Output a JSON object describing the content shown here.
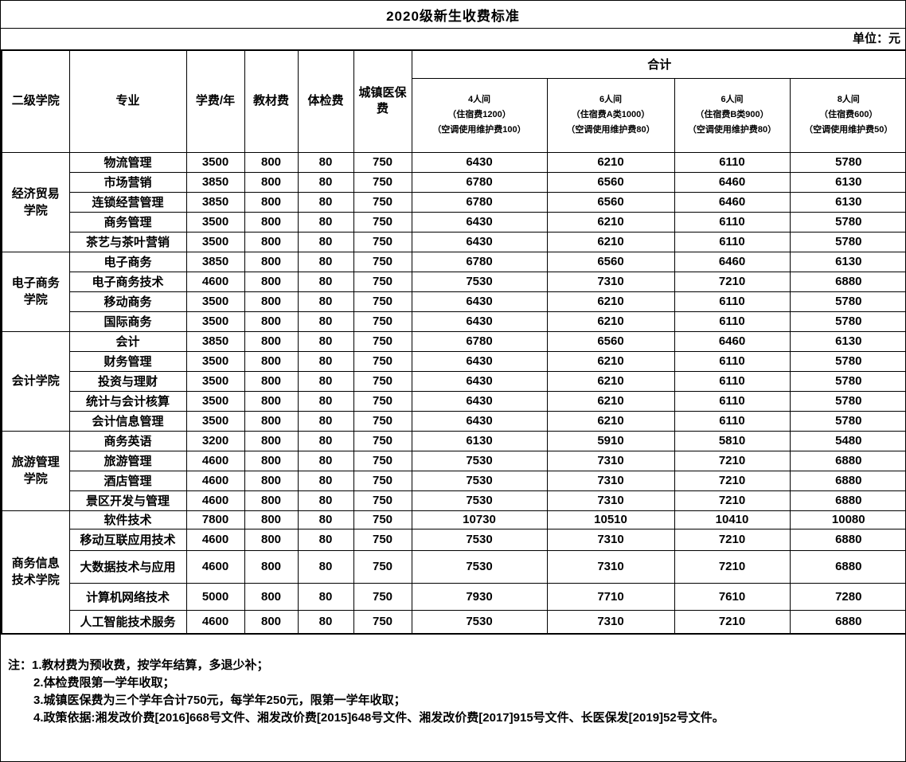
{
  "page": {
    "title": "2020级新生收费标准",
    "unit_label": "单位：元"
  },
  "colors": {
    "text": "#000000",
    "background": "#ffffff",
    "border": "#000000"
  },
  "table": {
    "headers": {
      "college": "二级学院",
      "major": "专业",
      "tuition": "学费/年",
      "textbook": "教材费",
      "physical": "体检费",
      "insurance": "城镇医保\n费",
      "total_group": "合计",
      "room_types": [
        "4人间\n（住宿费1200）\n（空调使用维护费100）",
        "6人间\n（住宿费A类1000）\n（空调使用维护费80）",
        "6人间\n（住宿费B类900）\n（空调使用维护费80）",
        "8人间\n（住宿费600）\n（空调使用维护费50）"
      ]
    },
    "colleges": [
      {
        "name": "经济贸易\n学院",
        "majors": [
          {
            "major": "物流管理",
            "tuition": "3500",
            "textbook": "800",
            "physical": "80",
            "insurance": "750",
            "totals": [
              "6430",
              "6210",
              "6110",
              "5780"
            ]
          },
          {
            "major": "市场营销",
            "tuition": "3850",
            "textbook": "800",
            "physical": "80",
            "insurance": "750",
            "totals": [
              "6780",
              "6560",
              "6460",
              "6130"
            ]
          },
          {
            "major": "连锁经营管理",
            "tuition": "3850",
            "textbook": "800",
            "physical": "80",
            "insurance": "750",
            "totals": [
              "6780",
              "6560",
              "6460",
              "6130"
            ]
          },
          {
            "major": "商务管理",
            "tuition": "3500",
            "textbook": "800",
            "physical": "80",
            "insurance": "750",
            "totals": [
              "6430",
              "6210",
              "6110",
              "5780"
            ]
          },
          {
            "major": "茶艺与茶叶营销",
            "tuition": "3500",
            "textbook": "800",
            "physical": "80",
            "insurance": "750",
            "totals": [
              "6430",
              "6210",
              "6110",
              "5780"
            ]
          }
        ]
      },
      {
        "name": "电子商务\n学院",
        "majors": [
          {
            "major": "电子商务",
            "tuition": "3850",
            "textbook": "800",
            "physical": "80",
            "insurance": "750",
            "totals": [
              "6780",
              "6560",
              "6460",
              "6130"
            ]
          },
          {
            "major": "电子商务技术",
            "tuition": "4600",
            "textbook": "800",
            "physical": "80",
            "insurance": "750",
            "totals": [
              "7530",
              "7310",
              "7210",
              "6880"
            ]
          },
          {
            "major": "移动商务",
            "tuition": "3500",
            "textbook": "800",
            "physical": "80",
            "insurance": "750",
            "totals": [
              "6430",
              "6210",
              "6110",
              "5780"
            ]
          },
          {
            "major": "国际商务",
            "tuition": "3500",
            "textbook": "800",
            "physical": "80",
            "insurance": "750",
            "totals": [
              "6430",
              "6210",
              "6110",
              "5780"
            ]
          }
        ]
      },
      {
        "name": "会计学院",
        "majors": [
          {
            "major": "会计",
            "tuition": "3850",
            "textbook": "800",
            "physical": "80",
            "insurance": "750",
            "totals": [
              "6780",
              "6560",
              "6460",
              "6130"
            ]
          },
          {
            "major": "财务管理",
            "tuition": "3500",
            "textbook": "800",
            "physical": "80",
            "insurance": "750",
            "totals": [
              "6430",
              "6210",
              "6110",
              "5780"
            ]
          },
          {
            "major": "投资与理财",
            "tuition": "3500",
            "textbook": "800",
            "physical": "80",
            "insurance": "750",
            "totals": [
              "6430",
              "6210",
              "6110",
              "5780"
            ]
          },
          {
            "major": "统计与会计核算",
            "tuition": "3500",
            "textbook": "800",
            "physical": "80",
            "insurance": "750",
            "totals": [
              "6430",
              "6210",
              "6110",
              "5780"
            ]
          },
          {
            "major": "会计信息管理",
            "tuition": "3500",
            "textbook": "800",
            "physical": "80",
            "insurance": "750",
            "totals": [
              "6430",
              "6210",
              "6110",
              "5780"
            ]
          }
        ]
      },
      {
        "name": "旅游管理\n学院",
        "majors": [
          {
            "major": "商务英语",
            "tuition": "3200",
            "textbook": "800",
            "physical": "80",
            "insurance": "750",
            "totals": [
              "6130",
              "5910",
              "5810",
              "5480"
            ]
          },
          {
            "major": "旅游管理",
            "tuition": "4600",
            "textbook": "800",
            "physical": "80",
            "insurance": "750",
            "totals": [
              "7530",
              "7310",
              "7210",
              "6880"
            ]
          },
          {
            "major": "酒店管理",
            "tuition": "4600",
            "textbook": "800",
            "physical": "80",
            "insurance": "750",
            "totals": [
              "7530",
              "7310",
              "7210",
              "6880"
            ]
          },
          {
            "major": "景区开发与管理",
            "tuition": "4600",
            "textbook": "800",
            "physical": "80",
            "insurance": "750",
            "totals": [
              "7530",
              "7310",
              "7210",
              "6880"
            ]
          }
        ]
      },
      {
        "name": "商务信息\n技术学院",
        "majors": [
          {
            "major": "软件技术",
            "tuition": "7800",
            "textbook": "800",
            "physical": "80",
            "insurance": "750",
            "totals": [
              "10730",
              "10510",
              "10410",
              "10080"
            ]
          },
          {
            "major": "移动互联应用技术",
            "tuition": "4600",
            "textbook": "800",
            "physical": "80",
            "insurance": "750",
            "totals": [
              "7530",
              "7310",
              "7210",
              "6880"
            ]
          },
          {
            "major": "大数据技术与应用",
            "tuition": "4600",
            "textbook": "800",
            "physical": "80",
            "insurance": "750",
            "totals": [
              "7530",
              "7310",
              "7210",
              "6880"
            ]
          },
          {
            "major": "计算机网络技术",
            "tuition": "5000",
            "textbook": "800",
            "physical": "80",
            "insurance": "750",
            "totals": [
              "7930",
              "7710",
              "7610",
              "7280"
            ]
          },
          {
            "major": "人工智能技术服务",
            "tuition": "4600",
            "textbook": "800",
            "physical": "80",
            "insurance": "750",
            "totals": [
              "7530",
              "7310",
              "7210",
              "6880"
            ]
          }
        ]
      }
    ]
  },
  "notes": {
    "prefix": "注：",
    "items": [
      "1.教材费为预收费，按学年结算，多退少补；",
      "2.体检费限第一学年收取；",
      "3.城镇医保费为三个学年合计750元，每学年250元，限第一学年收取；",
      "4.政策依据:湘发改价费[2016]668号文件、湘发改价费[2015]648号文件、湘发改价费[2017]915号文件、长医保发[2019]52号文件。"
    ]
  }
}
